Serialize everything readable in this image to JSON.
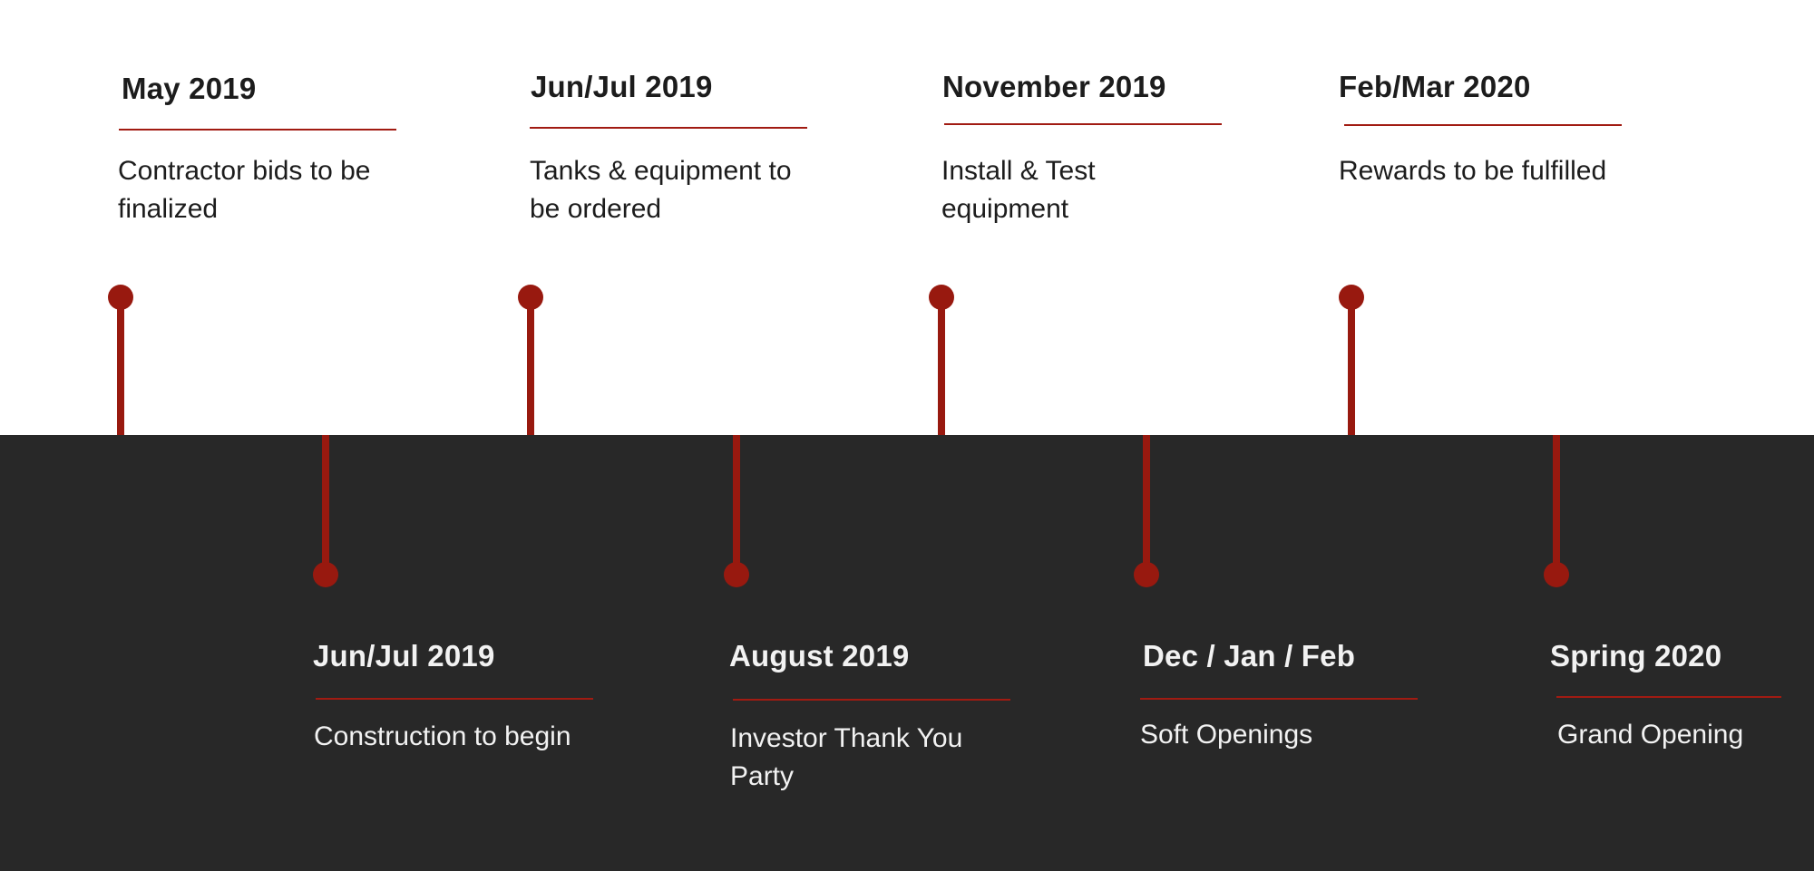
{
  "colors": {
    "accent": "#98190f",
    "dark_band": "#282828",
    "light_background": "#ffffff"
  },
  "milestones_top": [
    {
      "date": "May 2019",
      "text": "Contractor bids to be finalized"
    },
    {
      "date": "Jun/Jul 2019",
      "text": "Tanks & equipment to be ordered"
    },
    {
      "date": "November 2019",
      "text": "Install & Test equipment"
    },
    {
      "date": "Feb/Mar 2020",
      "text": "Rewards to be fulfilled"
    }
  ],
  "milestones_bottom": [
    {
      "date": "Jun/Jul 2019",
      "text": "Construction to begin"
    },
    {
      "date": "August 2019",
      "text": "Investor Thank You Party"
    },
    {
      "date": "Dec / Jan / Feb",
      "text": "Soft Openings"
    },
    {
      "date": "Spring 2020",
      "text": "Grand Opening"
    }
  ]
}
